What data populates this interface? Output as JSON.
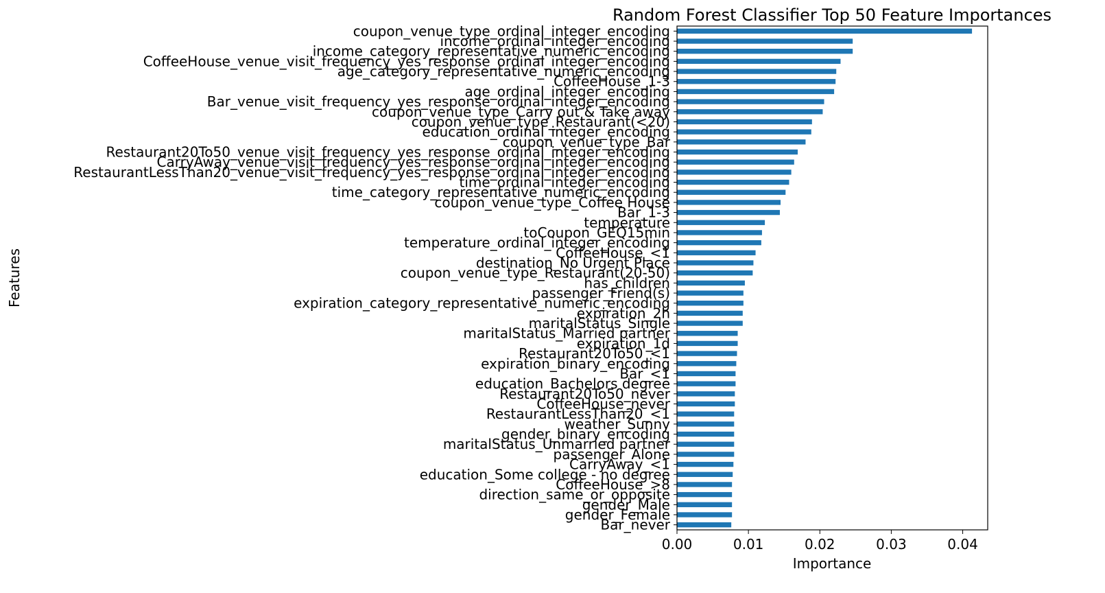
{
  "chart_data": {
    "type": "bar",
    "orientation": "horizontal",
    "title": "Random Forest Classifier Top 50 Feature Importances",
    "xlabel": "Importance",
    "ylabel": "Features",
    "xlim": [
      0,
      0.0435
    ],
    "xticks": [
      0.0,
      0.01,
      0.02,
      0.03,
      0.04
    ],
    "xtick_labels": [
      "0.00",
      "0.01",
      "0.02",
      "0.03",
      "0.04"
    ],
    "grid": false,
    "bar_color": "#1f77b4",
    "categories": [
      "coupon_venue_type_ordinal_integer_encoding",
      "income_ordinal_integer_encoding",
      "income_category_representative_numeric_encoding",
      "CoffeeHouse_venue_visit_frequency_yes_response_ordinal_integer_encoding",
      "age_category_representative_numeric_encoding",
      "CoffeeHouse_1-3",
      "age_ordinal_integer_encoding",
      "Bar_venue_visit_frequency_yes_response_ordinal_integer_encoding",
      "coupon_venue_type_Carry out & Take away",
      "coupon_venue_type_Restaurant(<20)",
      "education_ordinal_integer_encoding",
      "coupon_venue_type_Bar",
      "Restaurant20To50_venue_visit_frequency_yes_response_ordinal_integer_encoding",
      "CarryAway_venue_visit_frequency_yes_response_ordinal_integer_encoding",
      "RestaurantLessThan20_venue_visit_frequency_yes_response_ordinal_integer_encoding",
      "time_ordinal_integer_encoding",
      "time_category_representative_numeric_encoding",
      "coupon_venue_type_Coffee House",
      "Bar_1-3",
      "temperature",
      "toCoupon_GEQ15min",
      "temperature_ordinal_integer_encoding",
      "CoffeeHouse_<1",
      "destination_No Urgent Place",
      "coupon_venue_type_Restaurant(20-50)",
      "has_children",
      "passenger_Friend(s)",
      "expiration_category_representative_numeric_encoding",
      "expiration_2h",
      "maritalStatus_Single",
      "maritalStatus_Married partner",
      "expiration_1d",
      "Restaurant20To50_<1",
      "expiration_binary_encoding",
      "Bar_<1",
      "education_Bachelors degree",
      "Restaurant20To50_never",
      "CoffeeHouse_never",
      "RestaurantLessThan20_<1",
      "weather_Sunny",
      "gender_binary_encoding",
      "maritalStatus_Unmarried partner",
      "passenger_Alone",
      "CarryAway_<1",
      "education_Some college - no degree",
      "CoffeeHouse_>8",
      "direction_same_or_opposite",
      "gender_Male",
      "gender_Female",
      "Bar_never"
    ],
    "values": [
      0.0413,
      0.0246,
      0.0246,
      0.0229,
      0.0223,
      0.0222,
      0.022,
      0.0206,
      0.0204,
      0.0189,
      0.0188,
      0.018,
      0.0169,
      0.0164,
      0.016,
      0.0157,
      0.0152,
      0.0145,
      0.0144,
      0.0123,
      0.0119,
      0.0118,
      0.011,
      0.0107,
      0.0106,
      0.0095,
      0.0093,
      0.0093,
      0.0092,
      0.0092,
      0.0085,
      0.0085,
      0.0084,
      0.0083,
      0.0082,
      0.0082,
      0.0081,
      0.0081,
      0.008,
      0.008,
      0.008,
      0.008,
      0.008,
      0.0079,
      0.0078,
      0.0077,
      0.0077,
      0.0077,
      0.0077,
      0.0076
    ]
  }
}
